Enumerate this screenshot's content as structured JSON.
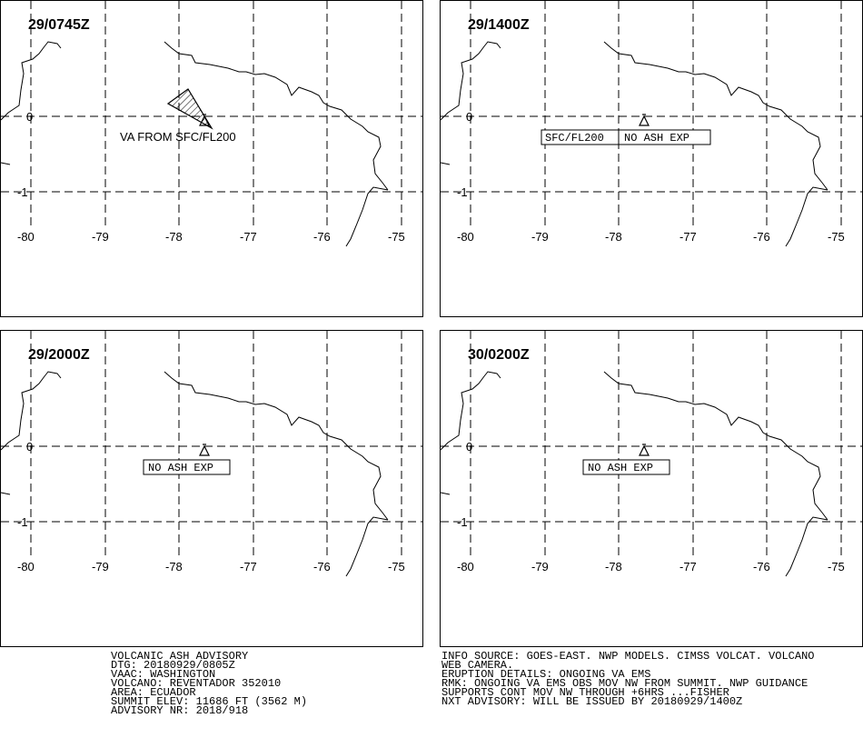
{
  "panels": [
    {
      "title": "29/0745Z",
      "label": "VA FROM SFC/FL200",
      "label_boxed": false,
      "ash_polygon": true,
      "lon_ticks": [
        "-80",
        "-79",
        "-78",
        "-77",
        "-76",
        "-75"
      ],
      "lat_ticks": [
        "0",
        "-1"
      ]
    },
    {
      "title": "29/1400Z",
      "label": "SFC/FL200",
      "label2": "NO ASH EXP",
      "label_boxed": true,
      "ash_polygon": false,
      "lon_ticks": [
        "-80",
        "-79",
        "-78",
        "-77",
        "-76",
        "-75"
      ],
      "lat_ticks": [
        "0",
        "-1"
      ]
    },
    {
      "title": "29/2000Z",
      "label": "NO ASH EXP",
      "label_boxed": true,
      "ash_polygon": false,
      "lon_ticks": [
        "-80",
        "-79",
        "-78",
        "-77",
        "-76",
        "-75"
      ],
      "lat_ticks": [
        "0",
        "-1"
      ]
    },
    {
      "title": "30/0200Z",
      "label": "NO ASH EXP",
      "label_boxed": true,
      "ash_polygon": false,
      "lon_ticks": [
        "-80",
        "-79",
        "-78",
        "-77",
        "-76",
        "-75"
      ],
      "lat_ticks": [
        "0",
        "-1"
      ]
    }
  ],
  "advisory": {
    "left_lines": [
      "VOLCANIC ASH ADVISORY",
      "DTG: 20180929/0805Z",
      "VAAC: WASHINGTON",
      "VOLCANO: REVENTADOR 352010",
      "AREA: ECUADOR",
      "SUMMIT ELEV: 11686 FT (3562 M)",
      "ADVISORY NR: 2018/918"
    ],
    "right_lines": [
      "INFO SOURCE: GOES-EAST. NWP MODELS. CIMSS VOLCAT. VOLCANO",
      "WEB CAMERA.",
      "ERUPTION DETAILS: ONGOING VA EMS",
      "RMK: ONGOING VA EMS OBS MOV NW FROM SUMMIT. NWP GUIDANCE",
      "SUPPORTS CONT MOV NW THROUGH +6HRS ...FISHER",
      "NXT ADVISORY: WILL BE ISSUED BY 20180929/1400Z"
    ]
  },
  "colors": {
    "line": "#000000",
    "background": "#ffffff"
  },
  "icons": {
    "volcano": "volcano-triangle-icon"
  }
}
